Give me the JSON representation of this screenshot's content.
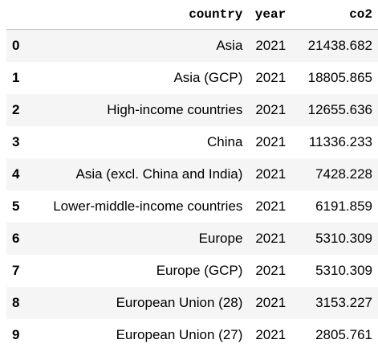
{
  "table": {
    "index_header": "",
    "columns": [
      "country",
      "year",
      "co2"
    ],
    "rows": [
      {
        "index": "0",
        "country": "Asia",
        "year": "2021",
        "co2": "21438.682"
      },
      {
        "index": "1",
        "country": "Asia (GCP)",
        "year": "2021",
        "co2": "18805.865"
      },
      {
        "index": "2",
        "country": "High-income countries",
        "year": "2021",
        "co2": "12655.636"
      },
      {
        "index": "3",
        "country": "China",
        "year": "2021",
        "co2": "11336.233"
      },
      {
        "index": "4",
        "country": "Asia (excl. China and India)",
        "year": "2021",
        "co2": "7428.228"
      },
      {
        "index": "5",
        "country": "Lower-middle-income countries",
        "year": "2021",
        "co2": "6191.859"
      },
      {
        "index": "6",
        "country": "Europe",
        "year": "2021",
        "co2": "5310.309"
      },
      {
        "index": "7",
        "country": "Europe (GCP)",
        "year": "2021",
        "co2": "5310.309"
      },
      {
        "index": "8",
        "country": "European Union (28)",
        "year": "2021",
        "co2": "3153.227"
      },
      {
        "index": "9",
        "country": "European Union (27)",
        "year": "2021",
        "co2": "2805.761"
      }
    ]
  }
}
